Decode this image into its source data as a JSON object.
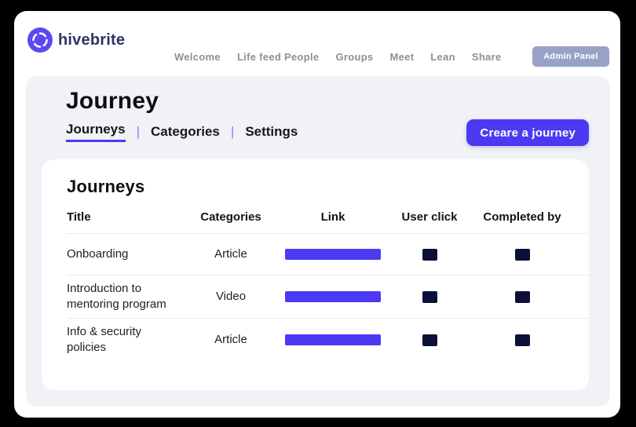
{
  "brand": {
    "wordmark": "hivebrite"
  },
  "nav": {
    "items": [
      {
        "label": "Welcome"
      },
      {
        "label": "Life feed People"
      },
      {
        "label": "Groups"
      },
      {
        "label": "Meet"
      },
      {
        "label": "Lean"
      },
      {
        "label": "Share"
      }
    ],
    "admin_button_label": "Admin Panel"
  },
  "page": {
    "title": "Journey",
    "tab_separator": "|",
    "tabs": [
      {
        "label": "Journeys",
        "active": true
      },
      {
        "label": "Categories",
        "active": false
      },
      {
        "label": "Settings",
        "active": false
      }
    ],
    "create_button_label": "Creare a journey"
  },
  "journeys": {
    "section_title": "Journeys",
    "columns": [
      "Title",
      "Categories",
      "Link",
      "User click",
      "Completed by"
    ],
    "rows": [
      {
        "title": "Onboarding",
        "category": "Article"
      },
      {
        "title": "Introduction to mentoring program",
        "category": "Video"
      },
      {
        "title": "Info & security policies",
        "category": "Article"
      }
    ]
  },
  "colors": {
    "primary_purple": "#4c3af2",
    "admin_button_blue_gray": "#97a2c6",
    "placeholder_square_navy": "#0c1038",
    "panel_gray": "#f1f2f6"
  }
}
